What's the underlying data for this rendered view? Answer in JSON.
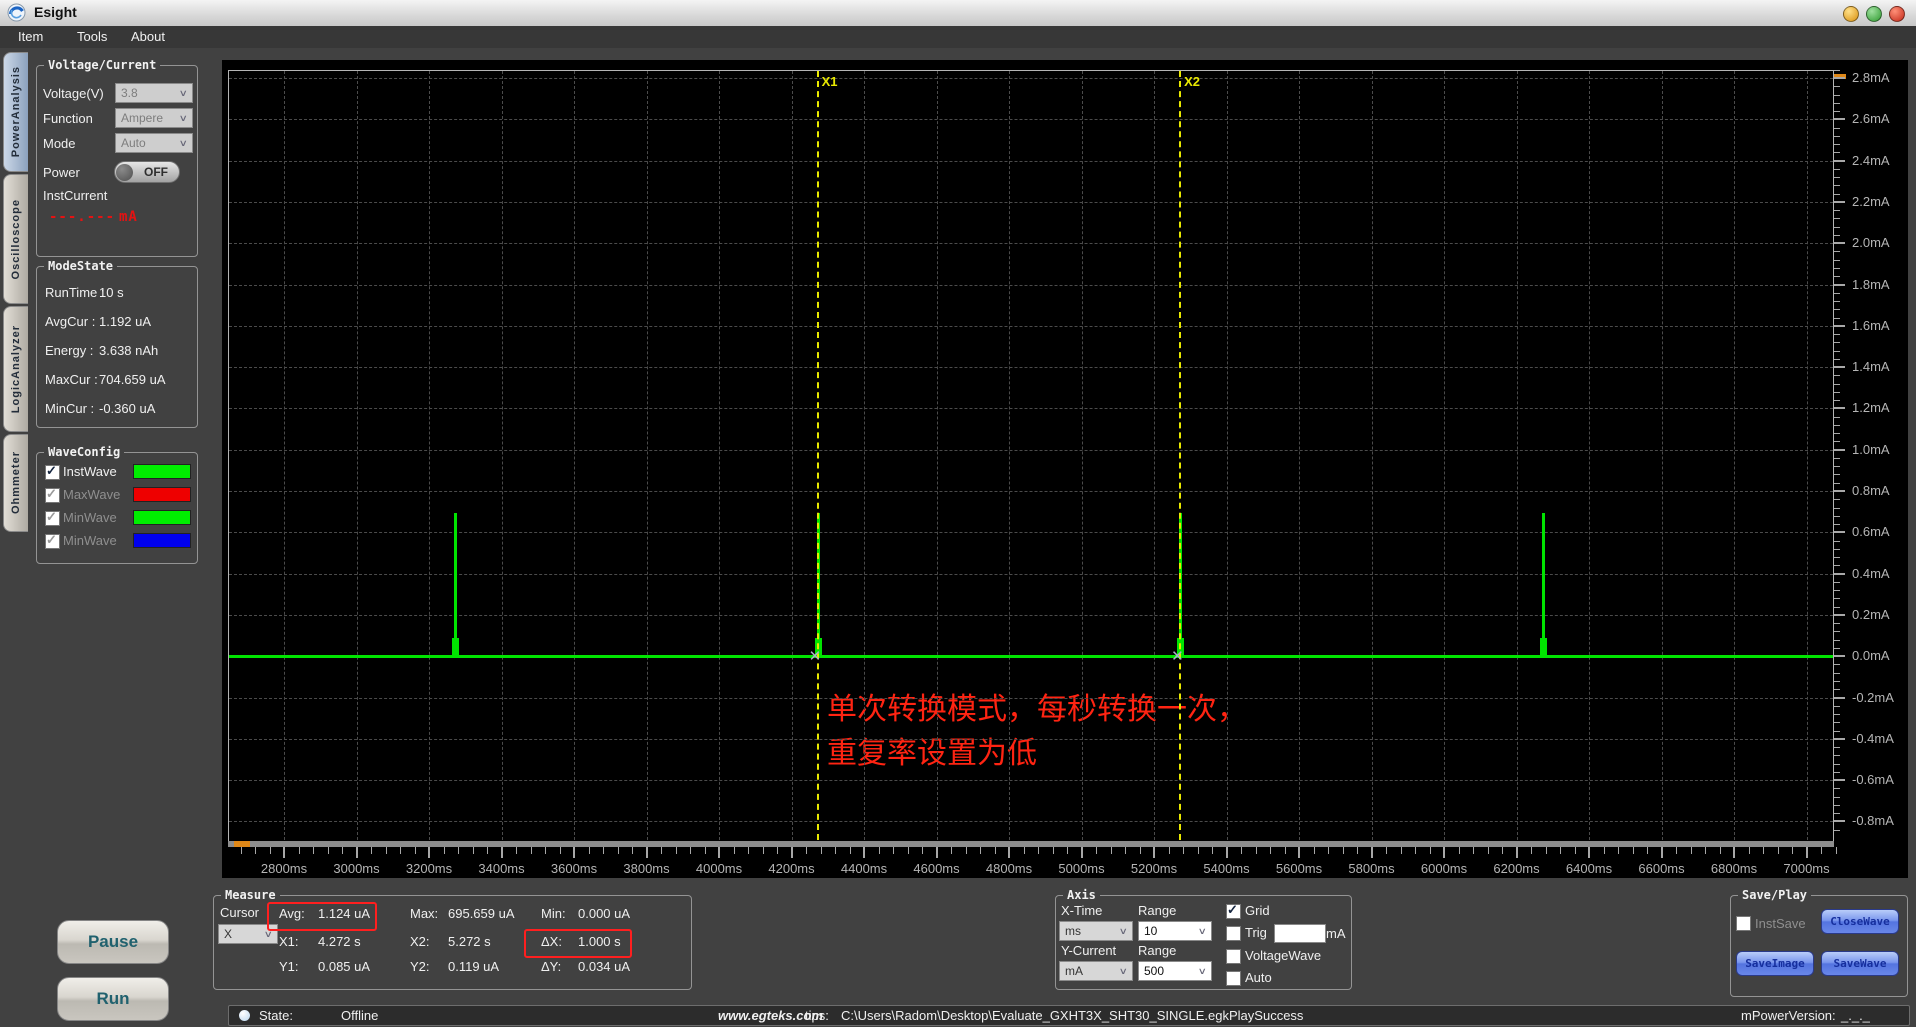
{
  "window": {
    "title": "Esight",
    "menu": [
      "Item",
      "Tools",
      "About"
    ],
    "window_buttons": [
      "minimize-button",
      "maximize-button",
      "close-button"
    ]
  },
  "side_tabs": [
    {
      "label": "PowerAnalysis",
      "active": true
    },
    {
      "label": "Oscilloscope",
      "active": false
    },
    {
      "label": "LogicAnalyzer",
      "active": false
    },
    {
      "label": "Ohmmeter",
      "active": false
    }
  ],
  "voltage_current": {
    "title": "Voltage/Current",
    "selects": [
      {
        "label": "Voltage(V)",
        "value": "3.8"
      },
      {
        "label": "Function",
        "value": "Ampere"
      },
      {
        "label": "Mode",
        "value": "Auto"
      }
    ],
    "power_label": "Power",
    "power_state": "OFF",
    "inst_current_label": "InstCurrent",
    "inst_current_value": "---.---",
    "inst_current_unit": "mA"
  },
  "mode_state": {
    "title": "ModeState",
    "rows": [
      {
        "label": "RunTime :",
        "value": "10 s"
      },
      {
        "label": "AvgCur :",
        "value": "1.192 uA"
      },
      {
        "label": "Energy :",
        "value": "3.638 nAh"
      },
      {
        "label": "MaxCur :",
        "value": "704.659 uA"
      },
      {
        "label": "MinCur :",
        "value": "-0.360 uA"
      }
    ]
  },
  "wave_config": {
    "title": "WaveConfig",
    "rows": [
      {
        "label": "InstWave",
        "checked": true,
        "enabled": true,
        "color": "#00ee00"
      },
      {
        "label": "MaxWave",
        "checked": true,
        "enabled": false,
        "color": "#ee0000"
      },
      {
        "label": "MinWave",
        "checked": true,
        "enabled": false,
        "color": "#00ee00"
      },
      {
        "label": "MinWave",
        "checked": true,
        "enabled": false,
        "color": "#0000ee"
      }
    ]
  },
  "run_controls": {
    "pause": "Pause",
    "run": "Run"
  },
  "measure": {
    "title": "Measure",
    "cursor_label": "Cursor",
    "cursor_value": "X",
    "fields": {
      "avg": {
        "label": "Avg:",
        "value": "1.124 uA",
        "highlight": true
      },
      "max": {
        "label": "Max:",
        "value": "695.659 uA"
      },
      "min": {
        "label": "Min:",
        "value": "0.000 uA"
      },
      "x1": {
        "label": "X1:",
        "value": "4.272 s"
      },
      "x2": {
        "label": "X2:",
        "value": "5.272 s"
      },
      "dx": {
        "label": "ΔX:",
        "value": "1.000 s",
        "highlight": true
      },
      "y1": {
        "label": "Y1:",
        "value": "0.085 uA"
      },
      "y2": {
        "label": "Y2:",
        "value": "0.119 uA"
      },
      "dy": {
        "label": "ΔY:",
        "value": "0.034 uA"
      }
    }
  },
  "axis_panel": {
    "title": "Axis",
    "x_time_label": "X-Time",
    "x_time_value": "ms",
    "range1_label": "Range",
    "range1_value": "10",
    "y_current_label": "Y-Current",
    "y_current_value": "mA",
    "range2_label": "Range",
    "range2_value": "500",
    "checkboxes": [
      {
        "label": "Grid",
        "checked": true
      },
      {
        "label": "Trig",
        "checked": false
      },
      {
        "label": "VoltageWave",
        "checked": false
      },
      {
        "label": "Auto",
        "checked": false
      }
    ],
    "trig_input_value": "",
    "trig_unit": "mA"
  },
  "save_play": {
    "title": "Save/Play",
    "inst_save_label": "InstSave",
    "inst_save_checked": false,
    "close_wave": "CloseWave",
    "save_image": "SaveImage",
    "save_wave": "SaveWave"
  },
  "status_bar": {
    "state_label": "State:",
    "state_value": "Offline",
    "website": "www.egteks.com",
    "tips_label": "tips:",
    "tips_value": "C:\\Users\\Radom\\Desktop\\Evaluate_GXHT3X_SHT30_SINGLE.egkPlaySuccess",
    "version_label": "mPowerVersion:",
    "version_value": "_._._"
  },
  "chart_data": {
    "type": "line",
    "x_unit": "ms",
    "y_unit": "mA",
    "grid": true,
    "x_ticks": [
      2800,
      3000,
      3200,
      3400,
      3600,
      3800,
      4000,
      4200,
      4400,
      4600,
      4800,
      5000,
      5200,
      5400,
      5600,
      5800,
      6000,
      6200,
      6400,
      6600,
      6800,
      7000
    ],
    "y_ticks": [
      2.8,
      2.6,
      2.4,
      2.2,
      2.0,
      1.8,
      1.6,
      1.4,
      1.2,
      1.0,
      0.8,
      0.6,
      0.4,
      0.2,
      0.0,
      -0.2,
      -0.4,
      -0.6,
      -0.8
    ],
    "x_range_ms": [
      2650,
      7090
    ],
    "y_range_mA": [
      -0.92,
      2.85
    ],
    "series": [
      {
        "name": "InstWave",
        "color": "#00e400",
        "baseline_mA": 0.0,
        "spike_times_ms": [
          3272,
          4272,
          5272,
          6272
        ],
        "spike_peak_mA": 0.695,
        "note": "flat 0 mA baseline with ~0.7 mA spikes once per second"
      }
    ],
    "cursors": [
      {
        "label": "X1",
        "time_ms": 4272
      },
      {
        "label": "X2",
        "time_ms": 5272
      }
    ],
    "annotation": {
      "lines": [
        "单次转换模式，每秒转换一次，",
        "重复率设置为低"
      ],
      "color": "#ff2412"
    }
  }
}
